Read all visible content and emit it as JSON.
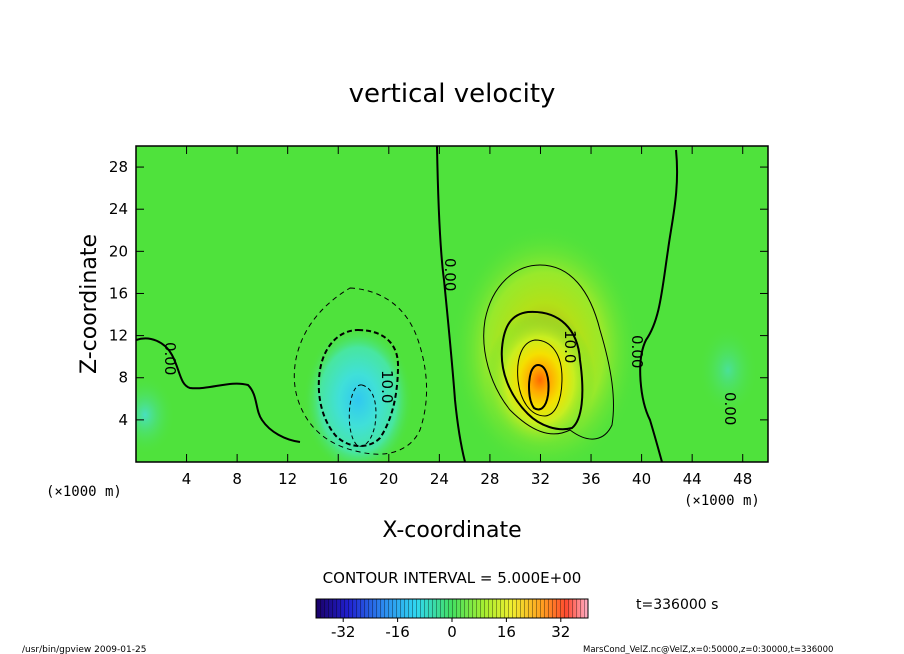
{
  "chart_data": {
    "type": "heatmap",
    "title": "vertical velocity",
    "xlabel": "X-coordinate",
    "ylabel": "Z-coordinate",
    "x_unit": "(×1000 m)",
    "z_unit": "(×1000 m)",
    "xlim": [
      0,
      50
    ],
    "ylim": [
      0,
      30
    ],
    "x_ticks": [
      "4",
      "8",
      "12",
      "16",
      "20",
      "24",
      "28",
      "32",
      "36",
      "40",
      "44",
      "48"
    ],
    "y_ticks": [
      "4",
      "8",
      "12",
      "16",
      "20",
      "24",
      "28"
    ],
    "x_tick_values": [
      4,
      8,
      12,
      16,
      20,
      24,
      28,
      32,
      36,
      40,
      44,
      48
    ],
    "y_tick_values": [
      4,
      8,
      12,
      16,
      20,
      24,
      28
    ],
    "contour_interval": "CONTOUR INTERVAL = 5.000E+00",
    "contour_labels": [
      "0.00",
      "10.0",
      "0.00",
      "0.00",
      "0.00",
      "10.0"
    ],
    "colorbar": {
      "ticks": [
        "-32",
        "-16",
        "0",
        "16",
        "32"
      ],
      "tick_values": [
        -32,
        -16,
        0,
        16,
        32
      ],
      "range": [
        -40,
        40
      ]
    },
    "time_label": "t=336000 s",
    "features": [
      {
        "kind": "updraft",
        "x": 32,
        "z": 7.5,
        "peak": 30
      },
      {
        "kind": "downdraft",
        "x": 17.5,
        "z": 6,
        "peak": -15
      },
      {
        "kind": "downdraft",
        "x": 1,
        "z": 4,
        "peak": -6
      },
      {
        "kind": "downdraft",
        "x": 46.5,
        "z": 8,
        "peak": -4
      }
    ]
  },
  "footer": {
    "program": "/usr/bin/gpview  2009-01-25",
    "file": "MarsCond_VelZ.nc@VelZ,x=0:50000,z=0:30000,t=336000"
  },
  "colors": {
    "background_green": "#4fe23c",
    "updraft_peak": "#ff6a00",
    "downdraft_peak": "#30c8f0"
  }
}
